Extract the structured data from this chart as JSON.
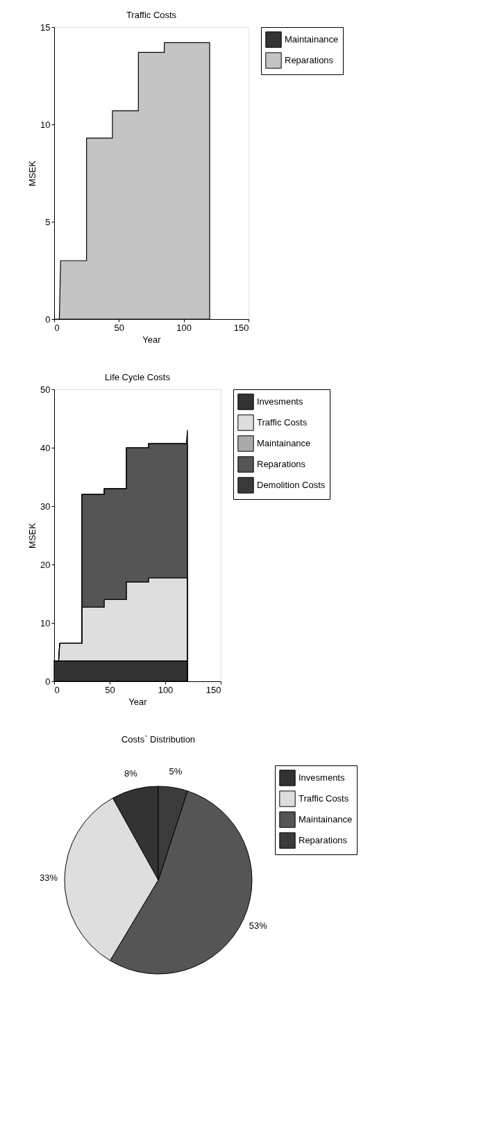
{
  "chart_data": [
    {
      "type": "area",
      "title": "Traffic Costs",
      "xlabel": "Year",
      "ylabel": "MSEK",
      "stacked": true,
      "xlim": [
        0,
        150
      ],
      "ylim": [
        0,
        15
      ],
      "xticks": [
        0,
        50,
        100,
        150
      ],
      "yticks": [
        0,
        5,
        10,
        15
      ],
      "legend": "top right",
      "x": [
        0,
        4,
        5,
        25,
        25,
        45,
        45,
        65,
        65,
        85,
        85,
        120,
        120
      ],
      "series": [
        {
          "name": "Maintainance",
          "color": "#333333",
          "values": [
            null,
            null,
            null,
            null,
            null,
            null,
            null,
            null,
            null,
            null,
            null,
            null,
            null
          ]
        },
        {
          "name": "Reparations",
          "color": "#c4c4c4",
          "values": [
            0,
            0,
            3,
            3,
            9.3,
            9.3,
            10.7,
            10.7,
            13.7,
            13.7,
            14.2,
            14.2,
            0
          ]
        }
      ]
    },
    {
      "type": "area",
      "title": "Life Cycle Costs",
      "xlabel": "Year",
      "ylabel": "MSEK",
      "stacked": true,
      "xlim": [
        0,
        150
      ],
      "ylim": [
        0,
        50
      ],
      "xticks": [
        0,
        50,
        100,
        150
      ],
      "yticks": [
        0,
        10,
        20,
        30,
        40,
        50
      ],
      "legend": "top right",
      "x": [
        0,
        4,
        5,
        25,
        25,
        45,
        45,
        65,
        65,
        85,
        85,
        119,
        120,
        120
      ],
      "series": [
        {
          "name": "Invesments",
          "color": "#333333",
          "values": [
            3.5,
            3.5,
            3.5,
            3.5,
            3.5,
            3.5,
            3.5,
            3.5,
            3.5,
            3.5,
            3.5,
            3.5,
            3.5,
            0
          ]
        },
        {
          "name": "Traffic Costs",
          "color": "#dedede",
          "values": [
            0,
            0,
            3,
            3,
            9.2,
            9.2,
            10.5,
            10.5,
            13.5,
            13.5,
            14.2,
            14.2,
            14.2,
            0
          ]
        },
        {
          "name": "Maintainance",
          "color": "#aaaaaa",
          "values": [
            null,
            null,
            null,
            null,
            null,
            null,
            null,
            null,
            null,
            null,
            null,
            null,
            null,
            null
          ]
        },
        {
          "name": "Reparations",
          "color": "#555555",
          "values": [
            0,
            0,
            0,
            0,
            19.3,
            19.3,
            19,
            19,
            23,
            23,
            23,
            23,
            23,
            0
          ]
        },
        {
          "name": "Demolition Costs",
          "color": "#3a3a3a",
          "values": [
            0,
            0,
            0,
            0,
            0,
            0,
            0,
            0,
            0,
            0,
            0,
            0,
            2.3,
            0
          ]
        }
      ]
    },
    {
      "type": "pie",
      "title": "Costs` Distribution",
      "legend": "top right",
      "categories": [
        "Invesments",
        "Traffic Costs",
        "Maintainance",
        "Reparations"
      ],
      "values": [
        8,
        33,
        53,
        5
      ],
      "colors": [
        "#333333",
        "#dedede",
        "#555555",
        "#3c3c3c"
      ],
      "value_labels": [
        "8%",
        "33%",
        "53%",
        "5%"
      ]
    }
  ]
}
